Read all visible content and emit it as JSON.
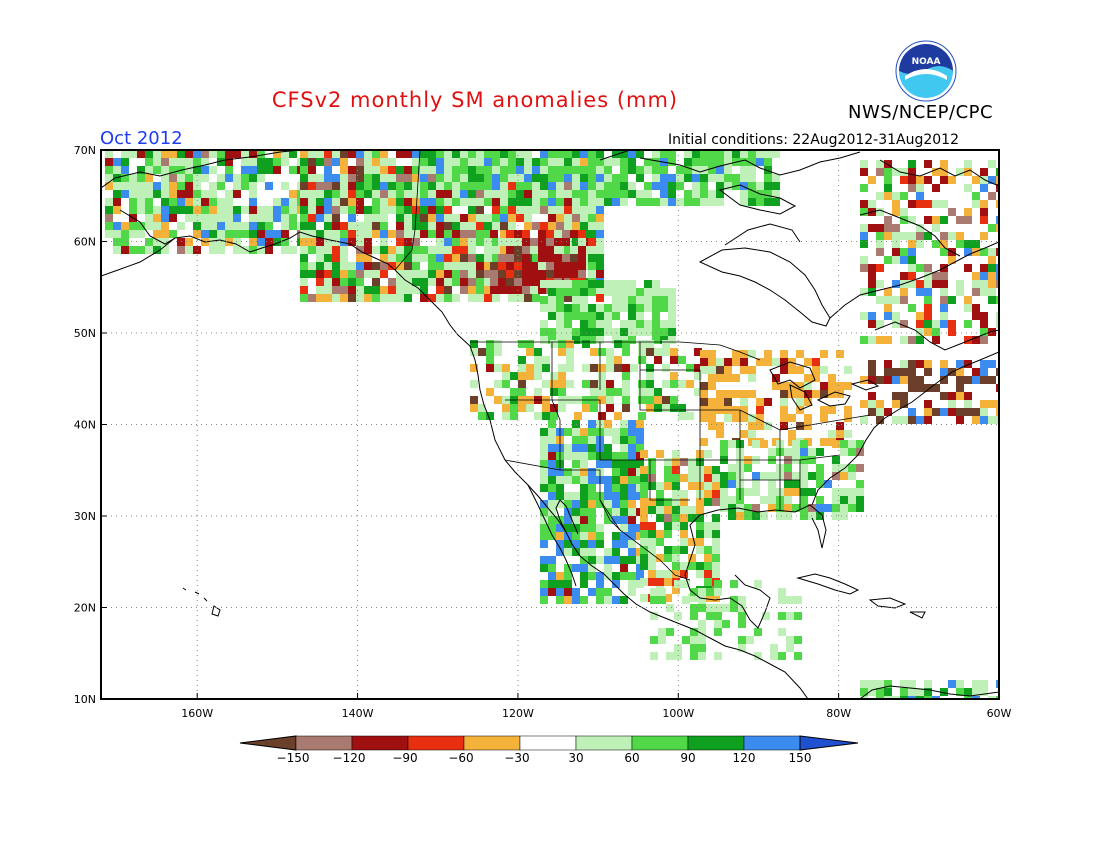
{
  "header": {
    "title": "CFSv2 monthly SM anomalies (mm)",
    "month": "Oct 2012",
    "initial_conditions": "Initial conditions: 22Aug2012-31Aug2012",
    "organization": "NWS/NCEP/CPC",
    "logo_text": "NOAA"
  },
  "map": {
    "lon_range": [
      -172,
      -60
    ],
    "lat_range": [
      10,
      70
    ],
    "lat_labels": [
      "70N",
      "60N",
      "50N",
      "40N",
      "30N",
      "20N",
      "10N"
    ],
    "lon_labels": [
      "160W",
      "140W",
      "120W",
      "100W",
      "80W",
      "60W"
    ],
    "grid": "dotted"
  },
  "legend": {
    "ticks": [
      "-150",
      "-120",
      "-90",
      "-60",
      "-30",
      "30",
      "60",
      "90",
      "120",
      "150"
    ],
    "colors": [
      "#6b3f2a",
      "#a87a70",
      "#a01010",
      "#e83010",
      "#f5b23a",
      "#ffffff",
      "#bff0b8",
      "#50d848",
      "#10a020",
      "#3c8cf0",
      "#1e50d0"
    ]
  }
}
